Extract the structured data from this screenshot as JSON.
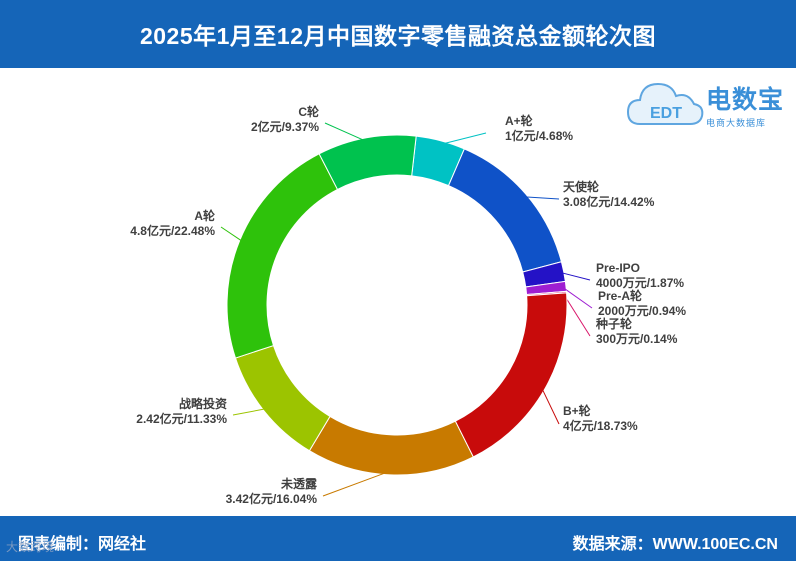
{
  "header": {
    "title": "2025年1月至12月中国数字零售融资总金额轮次图"
  },
  "logo": {
    "brand": "电数宝",
    "slogan": "电商大数据库",
    "mark_text": "EDT"
  },
  "footer": {
    "editor": "图表编制：网经社",
    "source": "数据来源：WWW.100EC.CN"
  },
  "watermark": {
    "text": "大数跨境"
  },
  "chart_data": {
    "type": "pie",
    "variant": "donut",
    "unit": "亿元",
    "slices": [
      {
        "name": "A+轮",
        "value": 1,
        "value_label": "1亿元",
        "percent": 4.68,
        "color": "#00c2c4"
      },
      {
        "name": "天使轮",
        "value": 3.08,
        "value_label": "3.08亿元",
        "percent": 14.42,
        "color": "#0f52c8"
      },
      {
        "name": "Pre-IPO",
        "value": 0.4,
        "value_label": "4000万元",
        "percent": 1.87,
        "color": "#2412c6"
      },
      {
        "name": "Pre-A轮",
        "value": 0.2,
        "value_label": "2000万元",
        "percent": 0.94,
        "color": "#9e1ed1"
      },
      {
        "name": "种子轮",
        "value": 0.03,
        "value_label": "300万元",
        "percent": 0.14,
        "color": "#d9166a"
      },
      {
        "name": "B+轮",
        "value": 4,
        "value_label": "4亿元",
        "percent": 18.73,
        "color": "#c80b0b"
      },
      {
        "name": "未透露",
        "value": 3.42,
        "value_label": "3.42亿元",
        "percent": 16.04,
        "color": "#c87a00"
      },
      {
        "name": "战略投资",
        "value": 2.42,
        "value_label": "2.42亿元",
        "percent": 11.33,
        "color": "#9cc400"
      },
      {
        "name": "A轮",
        "value": 4.8,
        "value_label": "4.8亿元",
        "percent": 22.48,
        "color": "#2ec20b"
      },
      {
        "name": "C轮",
        "value": 2,
        "value_label": "2亿元",
        "percent": 9.37,
        "color": "#00c24e"
      }
    ]
  }
}
